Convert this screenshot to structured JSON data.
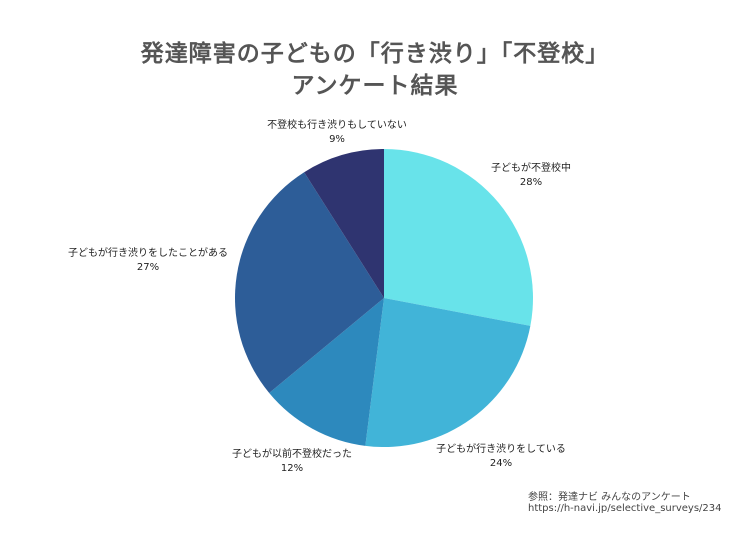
{
  "title_line1": "発達障害の子どもの「行き渋り」「不登校」",
  "title_line2": "アンケート結果",
  "chart_data": {
    "type": "pie",
    "categories": [
      "子どもが不登校中",
      "子どもが行き渋りをしている",
      "子どもが以前不登校だった",
      "子どもが行き渋りをしたことがある",
      "不登校も行き渋りもしていない"
    ],
    "values": [
      28,
      24,
      12,
      27,
      9
    ],
    "value_labels": [
      "28%",
      "24%",
      "12%",
      "27%",
      "9%"
    ],
    "colors": [
      "#68e3ea",
      "#41b4d8",
      "#2d89bd",
      "#2d5d98",
      "#2f3470"
    ]
  },
  "source": {
    "line1": "参照：発達ナビ みんなのアンケート",
    "line2": "https://h-navi.jp/selective_surveys/234"
  }
}
